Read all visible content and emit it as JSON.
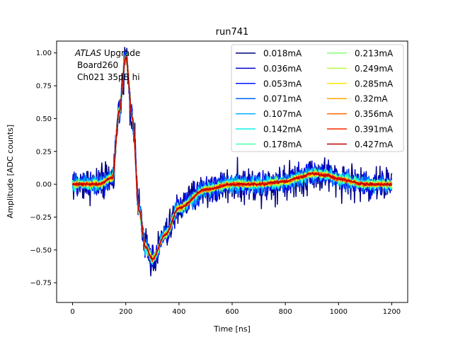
{
  "chart_data": {
    "type": "line",
    "title": "run741",
    "xlabel": "Time [ns]",
    "ylabel": "Amplitude [ADC counts]",
    "xlim": [
      -60,
      1260
    ],
    "ylim": [
      -0.9,
      1.09
    ],
    "xticks": [
      0,
      200,
      400,
      600,
      800,
      1000,
      1200
    ],
    "yticks": [
      -0.75,
      -0.5,
      -0.25,
      0.0,
      0.25,
      0.5,
      0.75,
      1.0
    ],
    "xtick_labels": [
      "0",
      "200",
      "400",
      "600",
      "800",
      "1000",
      "1200"
    ],
    "ytick_labels": [
      "−0.75",
      "−0.50",
      "−0.25",
      "0.00",
      "0.25",
      "0.50",
      "0.75",
      "1.00"
    ],
    "annotation": {
      "line1_italic": "ATLAS",
      "line1_rest": " Upgrade",
      "line2": "Board260",
      "line3": "Ch021 35pB hi"
    },
    "legend_position": "top-right",
    "pulse_shape": {
      "t": [
        0,
        100,
        150,
        175,
        200,
        225,
        250,
        275,
        300,
        350,
        400,
        500,
        600,
        700,
        800,
        850,
        900,
        950,
        1000,
        1100,
        1200
      ],
      "y": [
        0.0,
        0.0,
        0.05,
        0.55,
        0.97,
        0.5,
        -0.2,
        -0.48,
        -0.57,
        -0.38,
        -0.18,
        -0.04,
        0.0,
        0.0,
        0.02,
        0.05,
        0.08,
        0.07,
        0.04,
        0.0,
        0.0
      ]
    },
    "series": [
      {
        "name": "0.018mA",
        "color": "#00007f",
        "noise": 0.1
      },
      {
        "name": "0.036mA",
        "color": "#0000d4",
        "noise": 0.07
      },
      {
        "name": "0.053mA",
        "color": "#0014ff",
        "noise": 0.06
      },
      {
        "name": "0.071mA",
        "color": "#0060ff",
        "noise": 0.05
      },
      {
        "name": "0.107mA",
        "color": "#00acff",
        "noise": 0.04
      },
      {
        "name": "0.142mA",
        "color": "#10f0e6",
        "noise": 0.032
      },
      {
        "name": "0.178mA",
        "color": "#4dffaa",
        "noise": 0.026
      },
      {
        "name": "0.213mA",
        "color": "#83ff74",
        "noise": 0.022
      },
      {
        "name": "0.249mA",
        "color": "#b6ff41",
        "noise": 0.018
      },
      {
        "name": "0.285mA",
        "color": "#ffe600",
        "noise": 0.015
      },
      {
        "name": "0.32mA",
        "color": "#ffa500",
        "noise": 0.013
      },
      {
        "name": "0.356mA",
        "color": "#ff6300",
        "noise": 0.011
      },
      {
        "name": "0.391mA",
        "color": "#ff2500",
        "noise": 0.01
      },
      {
        "name": "0.427mA",
        "color": "#bf0000",
        "noise": 0.008
      }
    ]
  }
}
